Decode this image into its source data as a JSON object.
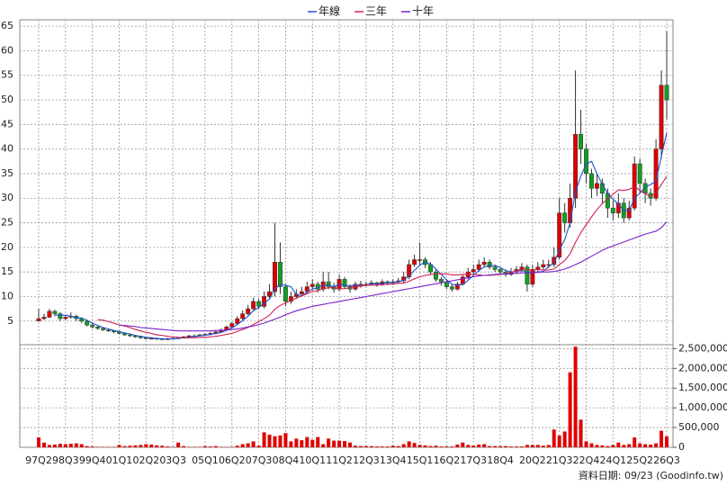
{
  "chart_data": {
    "type": "candlestick",
    "categories": [
      "97Q2",
      null,
      null,
      null,
      null,
      "98Q3",
      null,
      null,
      null,
      null,
      "99Q4",
      null,
      null,
      null,
      null,
      "01Q1",
      null,
      null,
      null,
      null,
      "02Q2",
      null,
      null,
      null,
      null,
      "03Q3",
      null,
      null,
      null,
      null,
      null,
      "05Q1",
      null,
      null,
      null,
      null,
      "06Q2",
      null,
      null,
      null,
      null,
      "07Q3",
      null,
      null,
      null,
      null,
      "08Q4",
      null,
      null,
      null,
      null,
      "10Q1",
      null,
      null,
      null,
      null,
      "11Q2",
      null,
      null,
      null,
      null,
      "12Q3",
      null,
      null,
      null,
      null,
      "13Q4",
      null,
      null,
      null,
      null,
      "15Q1",
      null,
      null,
      null,
      null,
      "16Q2",
      null,
      null,
      null,
      null,
      "17Q3",
      null,
      null,
      null,
      null,
      "18Q4",
      null,
      null,
      null,
      null,
      null,
      "20Q2",
      null,
      null,
      null,
      null,
      "21Q3",
      null,
      null,
      null,
      null,
      "22Q4",
      null,
      null,
      null,
      null,
      "24Q1",
      null,
      null,
      null,
      null,
      "25Q2",
      null,
      null,
      null,
      null,
      "26Q3"
    ],
    "open": [
      5,
      5.5,
      5.8,
      7,
      6.5,
      5.5,
      5.8,
      6,
      5.5,
      5,
      4.2,
      3.8,
      3.5,
      3.2,
      3,
      2.8,
      2.5,
      2.2,
      2,
      1.8,
      1.6,
      1.5,
      1.5,
      1.4,
      1.3,
      1.4,
      1.5,
      1.6,
      1.8,
      2,
      2,
      2.2,
      2.3,
      2.5,
      2.8,
      3.2,
      3.8,
      4.5,
      5.5,
      6.5,
      7.5,
      9,
      8,
      10,
      11,
      17,
      12,
      9,
      10,
      10.5,
      11,
      12,
      12.5,
      11.5,
      13,
      12,
      11.5,
      13.5,
      12,
      11.5,
      12.5,
      12.5,
      12.5,
      12.8,
      12.5,
      13,
      12.8,
      13,
      13.2,
      14,
      16.5,
      17.5,
      17.5,
      16.5,
      15,
      13.5,
      13,
      12,
      11.5,
      12.5,
      14,
      15,
      15.5,
      16.5,
      17,
      16,
      15.5,
      15,
      14.5,
      15,
      15.5,
      16,
      12.5,
      15.5,
      16,
      16.5,
      16.5,
      18,
      27,
      25,
      30,
      43,
      40,
      35,
      32,
      33,
      31,
      28,
      27,
      29,
      26,
      28,
      37,
      33,
      31,
      30,
      40,
      53
    ],
    "high": [
      7.5,
      6.5,
      7.5,
      7.3,
      6.8,
      6.3,
      6.8,
      6.3,
      5.8,
      5.2,
      4.5,
      4,
      3.8,
      3.4,
      3.2,
      3,
      2.7,
      2.4,
      2.2,
      2,
      1.8,
      1.7,
      1.6,
      1.5,
      1.6,
      1.7,
      1.8,
      2,
      2.2,
      2.3,
      2.4,
      2.6,
      2.8,
      3.1,
      3.5,
      4.1,
      4.9,
      6,
      7.2,
      8.3,
      9.8,
      9.5,
      11,
      12.5,
      25,
      21,
      12.5,
      11,
      11.5,
      12,
      13,
      13.5,
      13,
      15,
      15,
      12.8,
      14.5,
      14,
      12.5,
      13,
      13.2,
      13,
      13.3,
      13,
      13.5,
      13.3,
      13.5,
      13.8,
      15,
      17.5,
      18.5,
      21,
      18,
      17,
      15.5,
      14,
      13.5,
      12.5,
      13,
      14.5,
      15.8,
      16.5,
      17.5,
      18,
      17.5,
      16.5,
      16,
      15.5,
      15.8,
      16.2,
      16.8,
      16.5,
      16.5,
      17,
      17.5,
      17.5,
      20,
      30,
      29,
      33,
      56,
      48,
      41,
      36,
      35,
      34,
      32,
      29.5,
      31,
      30,
      29.5,
      38.5,
      38,
      34,
      32,
      42,
      56,
      64
    ],
    "low": [
      5,
      5.2,
      5.6,
      6,
      5,
      5.2,
      5.5,
      5,
      4.6,
      3.9,
      3.5,
      3.2,
      3,
      2.8,
      2.5,
      2.3,
      2,
      1.8,
      1.6,
      1.4,
      1.3,
      1.3,
      1.2,
      1.1,
      1.2,
      1.3,
      1.4,
      1.5,
      1.7,
      1.8,
      1.9,
      2,
      2.1,
      2.3,
      2.6,
      3,
      3.6,
      4.3,
      5.2,
      6.2,
      7.2,
      7.5,
      7.6,
      9.5,
      10,
      10.5,
      8,
      8.5,
      9.5,
      10,
      10.5,
      11.3,
      10.8,
      11,
      11.5,
      10.8,
      11,
      11.5,
      10.8,
      11.2,
      11.8,
      12,
      12.2,
      12,
      12.2,
      12.3,
      12.4,
      12.6,
      12.8,
      13.5,
      16,
      16.5,
      15.8,
      14.5,
      13,
      12.2,
      11.5,
      11,
      11.2,
      12.2,
      13.5,
      14.5,
      15,
      16,
      15.5,
      15,
      14.5,
      14,
      14.2,
      14.8,
      15,
      11,
      12,
      15,
      15.5,
      15.8,
      16,
      17.5,
      23,
      24,
      28,
      37,
      33,
      30,
      30.5,
      29,
      26,
      25.5,
      26,
      25,
      25.5,
      27.5,
      31,
      29,
      28.5,
      29.5,
      38,
      46
    ],
    "close": [
      5.5,
      5.8,
      7,
      6.5,
      5.5,
      5.8,
      6,
      5.5,
      5,
      4.2,
      3.8,
      3.5,
      3.2,
      3,
      2.8,
      2.5,
      2.2,
      2,
      1.8,
      1.6,
      1.5,
      1.5,
      1.4,
      1.3,
      1.4,
      1.5,
      1.6,
      1.8,
      2,
      2,
      2.2,
      2.3,
      2.5,
      2.8,
      3.2,
      3.8,
      4.5,
      5.5,
      6.5,
      7.5,
      9,
      8,
      10,
      11,
      17,
      12,
      9,
      10,
      10.5,
      11,
      12,
      12.5,
      11.5,
      13,
      12,
      11.5,
      13.5,
      12,
      11.5,
      12.5,
      12.5,
      12.5,
      12.8,
      12.5,
      13,
      12.8,
      13,
      13.2,
      14,
      16.5,
      17.5,
      17.5,
      16.5,
      15,
      13.5,
      13,
      12,
      11.5,
      12.5,
      14,
      15,
      15.5,
      16.5,
      17,
      16,
      15.5,
      15,
      14.5,
      15,
      15.5,
      16,
      12.5,
      15.5,
      16,
      16.5,
      16.5,
      18,
      27,
      25,
      30,
      43,
      40,
      35,
      32,
      33,
      31,
      28,
      27,
      29,
      26,
      28,
      37,
      33,
      31,
      30,
      40,
      53,
      50
    ],
    "up_color": "#e00000",
    "down_color": "#10a020",
    "series": [
      {
        "name": "年線",
        "color": "#2050d0",
        "values": [
          null,
          null,
          null,
          6.2,
          6.2,
          6.2,
          6,
          5.7,
          5.6,
          5.2,
          4.6,
          4.1,
          3.7,
          3.4,
          3.1,
          2.9,
          2.6,
          2.4,
          2.1,
          1.9,
          1.7,
          1.6,
          1.5,
          1.4,
          1.4,
          1.4,
          1.5,
          1.6,
          1.7,
          1.9,
          2,
          2.1,
          2.3,
          2.5,
          2.7,
          3.1,
          3.6,
          4.3,
          5.1,
          6,
          7.1,
          7.8,
          8.6,
          9.5,
          11.5,
          12.5,
          12.3,
          12,
          10.4,
          10.1,
          10.9,
          11.5,
          11.8,
          12.3,
          12.3,
          12,
          12.5,
          12.3,
          12.1,
          12.4,
          12.1,
          12.3,
          12.6,
          12.6,
          12.7,
          12.8,
          12.8,
          13,
          13.3,
          14.2,
          15.3,
          16.4,
          17,
          16.6,
          15.6,
          14.5,
          13.4,
          12.5,
          12.3,
          12.5,
          13.3,
          14.3,
          15.3,
          16,
          16.3,
          16.3,
          15.9,
          15.3,
          15,
          15.1,
          15.3,
          14.9,
          14.9,
          15,
          15.1,
          16.1,
          16.8,
          19.5,
          21.6,
          25,
          31.3,
          34.5,
          37,
          37.5,
          35,
          32.8,
          31,
          29.8,
          28.8,
          27.5,
          27.5,
          30,
          31,
          32.3,
          32.8,
          33.5,
          38.5,
          43.3
        ]
      },
      {
        "name": "三年",
        "color": "#d02050",
        "values": [
          null,
          null,
          null,
          null,
          null,
          null,
          null,
          null,
          null,
          null,
          null,
          5.3,
          5.2,
          4.9,
          4.6,
          4.2,
          4,
          3.7,
          3.3,
          3,
          2.7,
          2.5,
          2.2,
          2.1,
          1.9,
          1.8,
          1.7,
          1.6,
          1.6,
          1.6,
          1.7,
          1.7,
          1.8,
          1.9,
          2.1,
          2.3,
          2.5,
          2.9,
          3.3,
          3.7,
          4.3,
          4.9,
          5.5,
          6.2,
          7.4,
          8.2,
          8.7,
          9.2,
          9.7,
          10.1,
          10.6,
          11,
          11.2,
          11.6,
          11.8,
          11.8,
          11.6,
          11.6,
          11.8,
          12,
          12.1,
          12.3,
          12.3,
          12.3,
          12.4,
          12.5,
          12.5,
          12.7,
          12.7,
          13.1,
          13.6,
          14,
          14.3,
          14.5,
          14.6,
          14.6,
          14.6,
          14.4,
          14.4,
          14.5,
          14.6,
          14.5,
          14.4,
          14.3,
          14.3,
          14.4,
          14.5,
          14.6,
          14.9,
          15.2,
          15.5,
          15.4,
          15.4,
          15.5,
          15.4,
          15.4,
          15.6,
          16.5,
          17.3,
          18.7,
          21,
          23,
          24.6,
          26.2,
          27.7,
          28.9,
          29.9,
          30.8,
          31.7,
          31.6,
          31.8,
          32.4,
          31.6,
          30.9,
          30.4,
          31.1,
          32.8,
          34.4
        ]
      },
      {
        "name": "十年",
        "color": "#7a20c8",
        "values": [
          null,
          null,
          null,
          null,
          null,
          null,
          null,
          null,
          null,
          null,
          null,
          null,
          null,
          null,
          null,
          4.2,
          4.1,
          4,
          3.9,
          3.7,
          3.6,
          3.5,
          3.4,
          3.3,
          3.2,
          3.1,
          3,
          3,
          3,
          3,
          3,
          3,
          3,
          3.1,
          3.1,
          3.2,
          3.3,
          3.4,
          3.6,
          3.8,
          4,
          4.3,
          4.6,
          5,
          5.4,
          5.8,
          6.3,
          6.7,
          7.1,
          7.4,
          7.7,
          8,
          8.2,
          8.4,
          8.6,
          8.8,
          9,
          9.2,
          9.4,
          9.6,
          9.8,
          10,
          10.2,
          10.4,
          10.6,
          10.8,
          11,
          11.2,
          11.4,
          11.6,
          11.8,
          12,
          12.2,
          12.4,
          12.6,
          12.8,
          13,
          13.2,
          13.4,
          13.6,
          13.8,
          14,
          14.2,
          14.3,
          14.4,
          14.5,
          14.6,
          14.6,
          14.7,
          14.7,
          14.8,
          14.8,
          14.9,
          14.9,
          15,
          15,
          15.1,
          15.3,
          15.6,
          16,
          16.5,
          17,
          17.6,
          18.2,
          18.8,
          19.4,
          19.9,
          20.3,
          20.7,
          21.1,
          21.5,
          21.9,
          22.3,
          22.7,
          23,
          23.3,
          24,
          25.2
        ]
      }
    ],
    "ylim": [
      0.2,
      66.3
    ],
    "yticks": [
      5,
      10,
      15,
      20,
      25,
      30,
      35,
      40,
      45,
      50,
      55,
      60,
      65
    ],
    "grid": true,
    "volume": {
      "color": "#e00000",
      "values": [
        250000,
        120000,
        60000,
        70000,
        90000,
        80000,
        90000,
        100000,
        80000,
        30000,
        20000,
        10000,
        10000,
        10000,
        10000,
        60000,
        30000,
        40000,
        50000,
        60000,
        80000,
        70000,
        50000,
        40000,
        20000,
        10000,
        120000,
        30000,
        10000,
        10000,
        10000,
        30000,
        20000,
        30000,
        10000,
        10000,
        10000,
        40000,
        80000,
        100000,
        150000,
        40000,
        380000,
        320000,
        280000,
        300000,
        360000,
        150000,
        220000,
        180000,
        260000,
        190000,
        260000,
        80000,
        220000,
        170000,
        170000,
        160000,
        120000,
        40000,
        30000,
        30000,
        30000,
        20000,
        20000,
        20000,
        40000,
        30000,
        80000,
        150000,
        110000,
        60000,
        50000,
        30000,
        40000,
        20000,
        20000,
        20000,
        70000,
        120000,
        60000,
        40000,
        70000,
        80000,
        30000,
        30000,
        30000,
        30000,
        20000,
        20000,
        20000,
        60000,
        60000,
        60000,
        40000,
        60000,
        450000,
        300000,
        400000,
        1900000,
        2550000,
        700000,
        150000,
        100000,
        60000,
        50000,
        30000,
        60000,
        120000,
        60000,
        80000,
        250000,
        100000,
        80000,
        70000,
        100000,
        420000,
        280000
      ],
      "ylim": [
        0,
        2600000
      ],
      "yticks": [
        {
          "value": 0,
          "label": "0"
        },
        {
          "value": 500000,
          "label": "500,000"
        },
        {
          "value": 1000000,
          "label": "1,000,000"
        },
        {
          "value": 1500000,
          "label": "1,500,000"
        },
        {
          "value": 2000000,
          "label": "2,000,000"
        },
        {
          "value": 2500000,
          "label": "2,500,000"
        }
      ]
    },
    "footnote": "資料日期: 09/23 (Goodinfo.tw)"
  }
}
